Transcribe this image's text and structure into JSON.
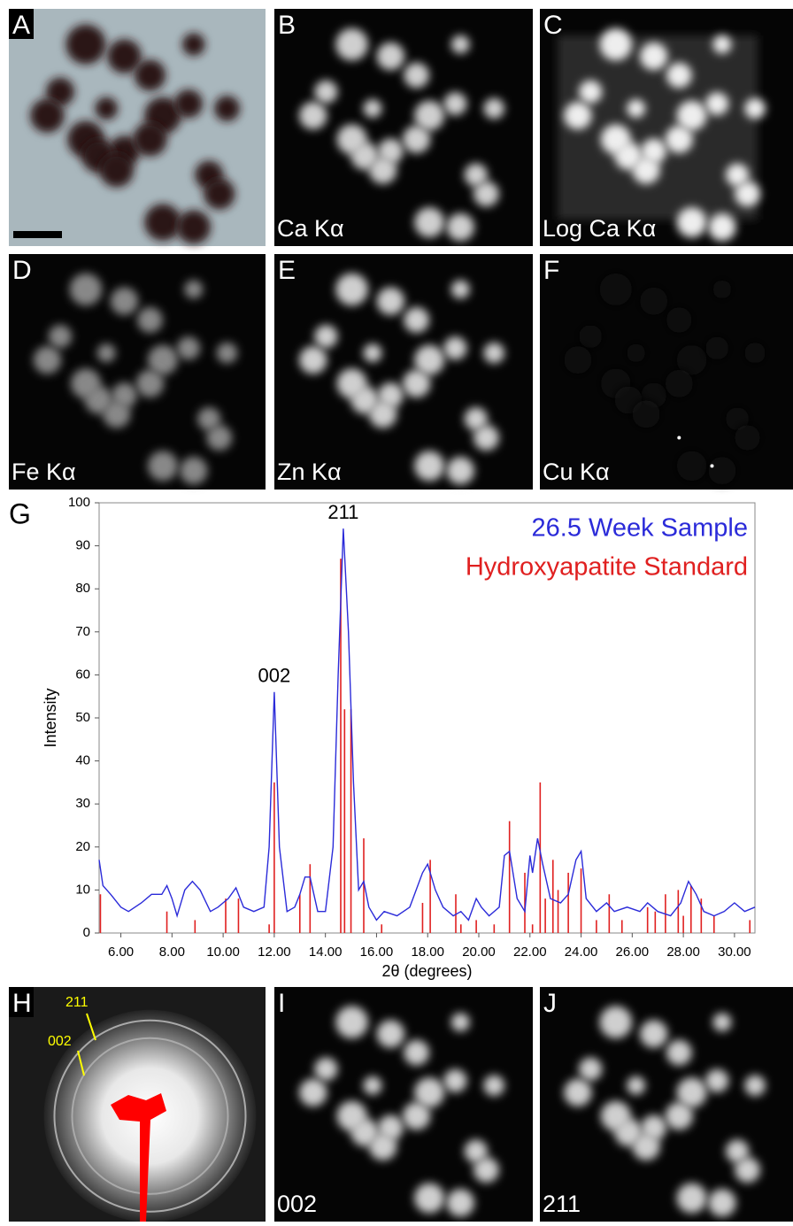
{
  "panels": [
    {
      "letter": "A"
    },
    {
      "letter": "B",
      "label": "Ca Kα"
    },
    {
      "letter": "C",
      "label": "Log Ca Kα"
    },
    {
      "letter": "D",
      "label": "Fe Kα"
    },
    {
      "letter": "E",
      "label": "Zn Kα"
    },
    {
      "letter": "F",
      "label": "Cu Kα"
    },
    {
      "letter": "H",
      "annotations": [
        "211",
        "002"
      ]
    },
    {
      "letter": "I",
      "label": "002"
    },
    {
      "letter": "J",
      "label": "211"
    }
  ],
  "chart_data": {
    "type": "line",
    "panel_letter": "G",
    "x_label": "2θ (degrees)",
    "y_label": "Intensity",
    "xlim": [
      5.15,
      30.8
    ],
    "ylim": [
      0,
      100
    ],
    "xticks": [
      {
        "value": 6,
        "label": "6.00"
      },
      {
        "value": 8,
        "label": "8.00"
      },
      {
        "value": 10,
        "label": "10.00"
      },
      {
        "value": 12,
        "label": "12.00"
      },
      {
        "value": 14,
        "label": "14.00"
      },
      {
        "value": 16,
        "label": "16.00"
      },
      {
        "value": 18,
        "label": "18.00"
      },
      {
        "value": 20,
        "label": "20.00"
      },
      {
        "value": 22,
        "label": "22.00"
      },
      {
        "value": 24,
        "label": "24.00"
      },
      {
        "value": 26,
        "label": "26.00"
      },
      {
        "value": 28,
        "label": "28.00"
      },
      {
        "value": 30,
        "label": "30.00"
      }
    ],
    "yticks": [
      0,
      10,
      20,
      30,
      40,
      50,
      60,
      70,
      80,
      90,
      100
    ],
    "annotations": [
      {
        "text": "211",
        "x": 14.7,
        "y": 94
      },
      {
        "text": "002",
        "x": 12.0,
        "y": 56
      }
    ],
    "series": [
      {
        "name": "26.5 Week Sample",
        "color": "#2b2bd9",
        "kind": "line",
        "x": [
          5.15,
          5.3,
          5.6,
          6.0,
          6.3,
          6.8,
          7.2,
          7.6,
          7.8,
          8.0,
          8.2,
          8.5,
          8.8,
          9.1,
          9.5,
          9.8,
          10.2,
          10.5,
          10.8,
          11.2,
          11.6,
          11.8,
          12.0,
          12.2,
          12.5,
          12.8,
          13.0,
          13.2,
          13.4,
          13.7,
          14.0,
          14.3,
          14.5,
          14.7,
          14.9,
          15.1,
          15.3,
          15.5,
          15.7,
          16.0,
          16.3,
          16.8,
          17.3,
          17.8,
          18.0,
          18.3,
          18.6,
          19.0,
          19.3,
          19.6,
          19.9,
          20.1,
          20.4,
          20.8,
          21.0,
          21.2,
          21.5,
          21.8,
          22.0,
          22.1,
          22.3,
          22.5,
          22.8,
          23.2,
          23.5,
          23.8,
          24.0,
          24.2,
          24.6,
          25.0,
          25.3,
          25.8,
          26.3,
          26.6,
          27.0,
          27.5,
          27.9,
          28.2,
          28.5,
          28.8,
          29.2,
          29.6,
          30.0,
          30.4,
          30.8
        ],
        "values": [
          17,
          11,
          9,
          6,
          5,
          7,
          9,
          9,
          11,
          8,
          4,
          10,
          12,
          10,
          5,
          6,
          8,
          10.5,
          6,
          5,
          6,
          20,
          56,
          20,
          5,
          6,
          9,
          13,
          13,
          5,
          5,
          20,
          60,
          94,
          70,
          35,
          10,
          12,
          6,
          3,
          5,
          4,
          6,
          14,
          16,
          10,
          6,
          4,
          5,
          3,
          8,
          6,
          4,
          6,
          18,
          19,
          8,
          5,
          18,
          14,
          22,
          16,
          8,
          7,
          9,
          17,
          19,
          8,
          5,
          7,
          5,
          6,
          5,
          7,
          5,
          4,
          7,
          12,
          9,
          5,
          4,
          5,
          7,
          5,
          6
        ]
      },
      {
        "name": "Hydroxyapatite Standard",
        "color": "#e02020",
        "kind": "stick",
        "x": [
          5.2,
          7.8,
          8.9,
          10.1,
          10.6,
          11.8,
          12.0,
          13.0,
          13.4,
          14.6,
          14.75,
          15.0,
          15.5,
          16.2,
          17.8,
          18.1,
          19.1,
          19.3,
          19.9,
          20.6,
          21.2,
          21.8,
          22.1,
          22.4,
          22.6,
          22.9,
          23.1,
          23.5,
          24.0,
          24.6,
          25.1,
          25.6,
          26.6,
          26.9,
          27.3,
          27.8,
          28.0,
          28.3,
          28.7,
          29.2,
          30.6
        ],
        "values": [
          9,
          5,
          3,
          8,
          8,
          2,
          35,
          9,
          16,
          87,
          52,
          52,
          22,
          2,
          7,
          17,
          9,
          2,
          3,
          2,
          26,
          14,
          2,
          35,
          8,
          17,
          10,
          14,
          15,
          3,
          9,
          3,
          6,
          5,
          9,
          10,
          4,
          11,
          8,
          4,
          3
        ]
      }
    ]
  }
}
